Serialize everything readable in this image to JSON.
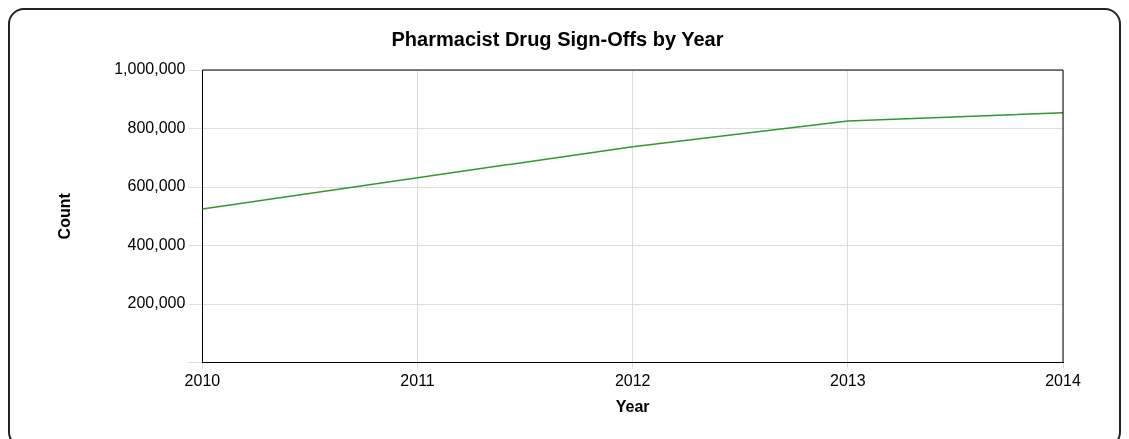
{
  "chart_data": {
    "type": "line",
    "title": "Pharmacist Drug Sign-Offs by Year",
    "xlabel": "Year",
    "ylabel": "Count",
    "x": [
      2010,
      2011,
      2012,
      2013,
      2014
    ],
    "series": [
      {
        "color": "#2e9a2e",
        "values": [
          525000,
          632000,
          738000,
          826000,
          854000
        ]
      }
    ],
    "xlim": [
      2010,
      2014
    ],
    "xticks": [
      2010,
      2011,
      2012,
      2013,
      2014
    ],
    "ylim": [
      0,
      1000000
    ],
    "yticks": [
      {
        "value": 0,
        "label": null
      },
      {
        "value": 200000,
        "label": "200,000"
      },
      {
        "value": 400000,
        "label": "400,000"
      },
      {
        "value": 600000,
        "label": "600,000"
      },
      {
        "value": 800000,
        "label": "800,000"
      },
      {
        "value": 1000000,
        "label": "1,000,000"
      }
    ],
    "grid": true,
    "legend": false,
    "marker": "none",
    "line_style": "solid"
  }
}
